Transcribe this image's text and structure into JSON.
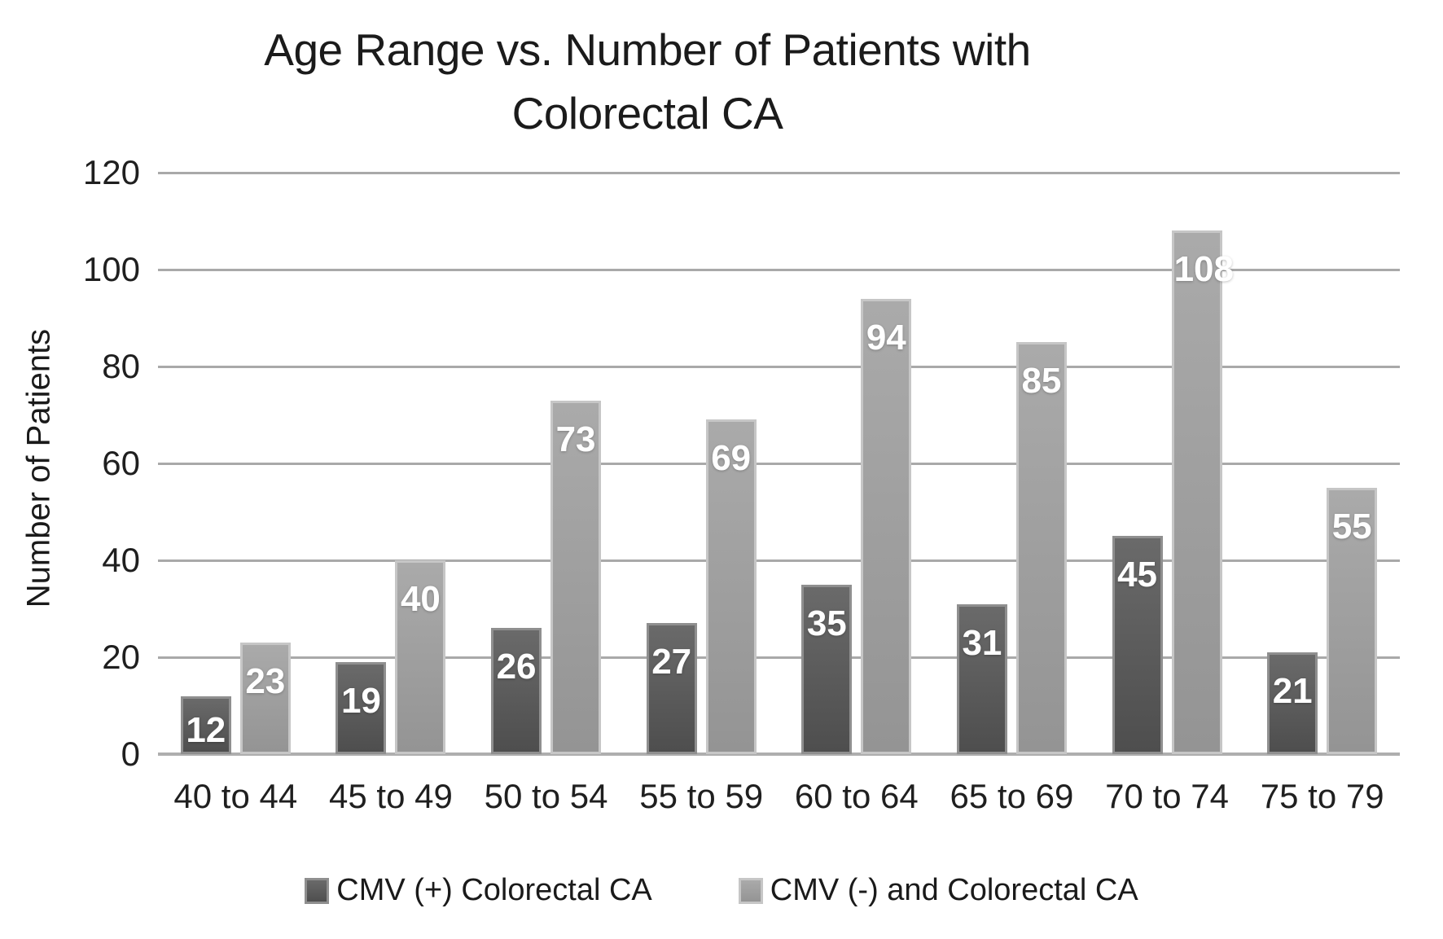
{
  "title": {
    "line1": "Age Range vs. Number of Patients with",
    "line2": "Colorectal CA"
  },
  "chart_data": {
    "type": "bar",
    "title": "Age Range vs. Number of Patients with Colorectal CA",
    "categories": [
      "40 to 44",
      "45 to 49",
      "50 to 54",
      "55 to 59",
      "60 to 64",
      "65 to 69",
      "70 to 74",
      "75 to 79"
    ],
    "series": [
      {
        "name": "CMV (+) Colorectal CA",
        "values": [
          12,
          19,
          26,
          27,
          35,
          31,
          45,
          21
        ],
        "color": "#5a5a5a"
      },
      {
        "name": "CMV (-) and Colorectal CA",
        "values": [
          23,
          40,
          73,
          69,
          94,
          85,
          108,
          55
        ],
        "color": "#9d9d9d"
      }
    ],
    "xlabel": "",
    "ylabel": "Number of Patients",
    "ylim": [
      0,
      120
    ],
    "yticks": [
      0,
      20,
      40,
      60,
      80,
      100,
      120
    ],
    "grid": true,
    "gridline_color": "#a9a9a9",
    "background_color": "#ffffff",
    "text_color": "#1a1a1a",
    "value_label_color": "#ffffff",
    "legend_position": "bottom",
    "value_labels_position": "inside-top"
  }
}
